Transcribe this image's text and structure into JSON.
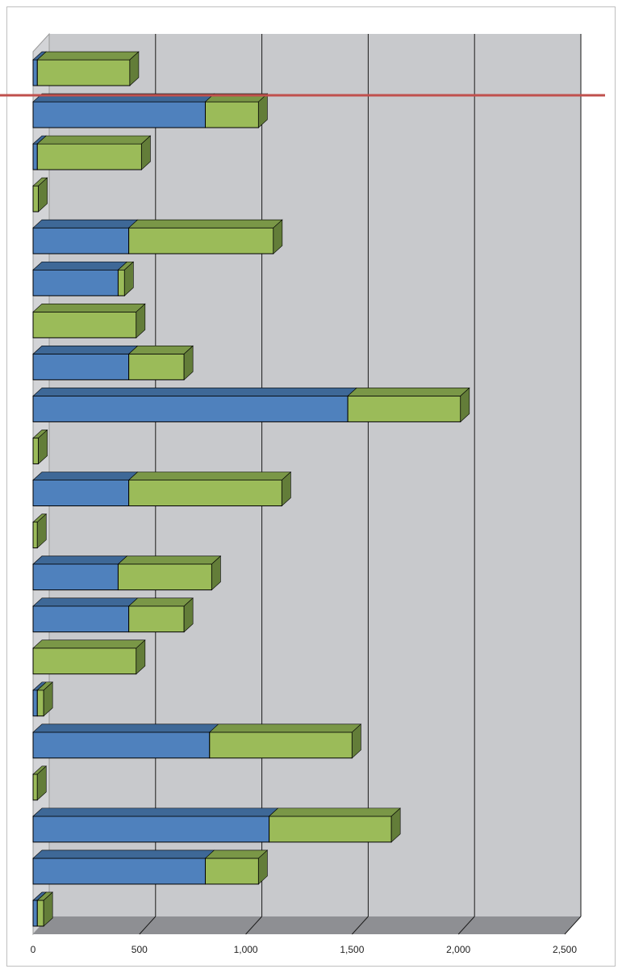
{
  "chart_data": {
    "type": "bar",
    "orientation": "horizontal",
    "stacked": true,
    "style": "3d",
    "title": "",
    "xlabel": "",
    "ylabel": "",
    "xlim": [
      0,
      2500
    ],
    "x_ticks": [
      "0",
      "500",
      "1,000",
      "1,500",
      "2,000",
      "2,500"
    ],
    "x_tick_values": [
      0,
      500,
      1000,
      1500,
      2000,
      2500
    ],
    "grid": true,
    "legend": "none",
    "reference_line": {
      "color": "#c0504d"
    },
    "categories": [
      "",
      "",
      "",
      "",
      "",
      "",
      "",
      "",
      "",
      "",
      "",
      "",
      "",
      "",
      "",
      "",
      "",
      "",
      "",
      "",
      ""
    ],
    "series": [
      {
        "color": "#4f81bd",
        "values": [
          20,
          810,
          20,
          0,
          450,
          400,
          0,
          450,
          1480,
          0,
          450,
          0,
          400,
          450,
          0,
          20,
          830,
          0,
          1110,
          810,
          20
        ]
      },
      {
        "color": "#9bbb59",
        "values": [
          435,
          250,
          490,
          25,
          680,
          30,
          485,
          260,
          530,
          25,
          720,
          20,
          440,
          260,
          485,
          30,
          670,
          20,
          575,
          250,
          30
        ]
      }
    ]
  },
  "colors": {
    "wall": "#c8c9cc",
    "floor": "#8e8f93",
    "grid_line": "#1a1a1a",
    "reference_line": "#c0504d",
    "series1_side": "#2d4f75",
    "series1_top": "#3e6897",
    "series2_side": "#637d39",
    "series2_top": "#7a9747"
  }
}
